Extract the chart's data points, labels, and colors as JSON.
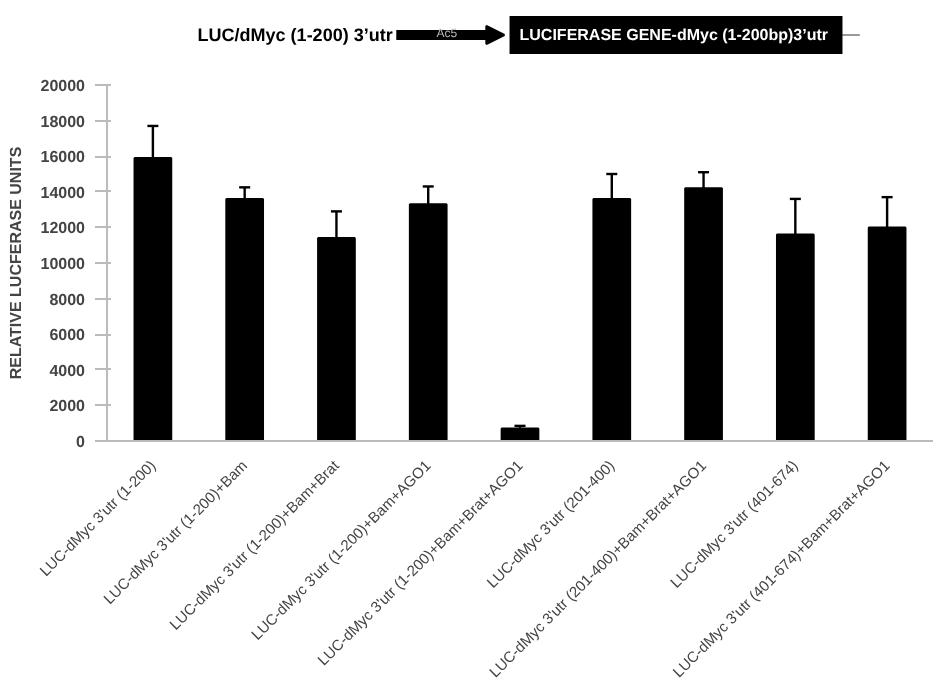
{
  "chart_data": {
    "type": "bar",
    "categories": [
      "LUC-dMyc 3'utr (1-200)",
      "LUC-dMyc 3'utr (1-200)+Bam",
      "LUC-dMyc 3'utr (1-200)+Bam+Brat",
      "LUC-dMyc 3'utr (1-200)+Bam+AGO1",
      "LUC-dMyc 3'utr (1-200)+Bam+Brat+AGO1",
      "LUC-dMyc 3'utr (201-400)",
      "LUC-dMyc 3'utr (201-400)+Bam+Brat+AGO1",
      "LUC-dMyc 3'utr (401-674)",
      "LUC-dMyc 3'utr (401-674)+Bam+Brat+AGO1"
    ],
    "values": [
      15900,
      13600,
      11400,
      13300,
      700,
      13600,
      14200,
      11600,
      12000
    ],
    "errors": [
      1800,
      650,
      1500,
      1000,
      150,
      1400,
      900,
      2000,
      1700
    ],
    "color": "#000000",
    "ylabel": "RELATIVE LUCFERASE UNITS",
    "annotations": [
      "LUC/dMyc (1-200) 3’utr",
      "Ac5",
      "LUCIFERASE GENE-dMyc  (1-200bp)3’utr"
    ],
    "ylim": [
      0,
      20000
    ],
    "yticks": [
      0,
      2000,
      4000,
      6000,
      8000,
      10000,
      12000,
      14000,
      16000,
      18000,
      20000
    ],
    "grid": false
  }
}
